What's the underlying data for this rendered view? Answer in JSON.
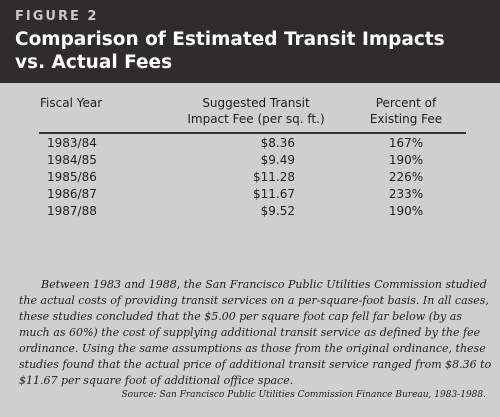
{
  "figure": {
    "label": "FIGURE 2",
    "title_line1": "Comparison of Estimated Transit Impacts",
    "title_line2": "vs. Actual Fees"
  },
  "table": {
    "headers": {
      "year": "Fiscal Year",
      "fee_line1": "Suggested Transit",
      "fee_line2": "Impact Fee (per sq. ft.)",
      "pct_line1": "Percent of",
      "pct_line2": "Existing Fee"
    },
    "rows": [
      {
        "year": "1983/84",
        "fee": "$8.36",
        "pct": "167%"
      },
      {
        "year": "1984/85",
        "fee": "$9.49",
        "pct": "190%"
      },
      {
        "year": "1985/86",
        "fee": "$11.28",
        "pct": "226%"
      },
      {
        "year": "1986/87",
        "fee": "$11.67",
        "pct": "233%"
      },
      {
        "year": "1987/88",
        "fee": "$9.52",
        "pct": "190%"
      }
    ]
  },
  "paragraph": "Between 1983 and 1988, the San Francisco Public Utilities Commission studied the actual costs of providing transit services on a per-square-foot basis. In all cases, these studies concluded that the $5.00 per square foot cap fell far below (by as much as 60%) the cost of supplying additional transit service as defined by the fee ordinance. Using the same assumptions as those from the original ordinance, these studies found that the actual price of additional transit service ranged from $8.36 to $11.67 per square foot of additional office space.",
  "source": "Source: San Francisco Public Utilities Commission Finance Bureau, 1983-1988.",
  "colors": {
    "header_bg": "#2f2c2c",
    "body_bg": "#cfcfcf",
    "label_color": "#c9c9c9",
    "title_color": "#ffffff"
  }
}
